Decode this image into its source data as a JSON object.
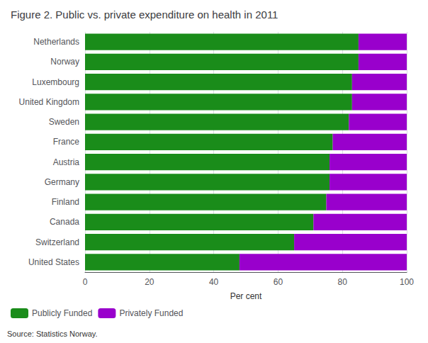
{
  "chart_data": {
    "type": "bar",
    "title": "Figure 2. Public vs. private expenditure on health in 2011",
    "orientation": "horizontal",
    "stacked": true,
    "categories": [
      "Netherlands",
      "Norway",
      "Luxembourg",
      "United Kingdom",
      "Sweden",
      "France",
      "Austria",
      "Germany",
      "Finland",
      "Canada",
      "Switzerland",
      "United States"
    ],
    "series": [
      {
        "name": "Publicly Funded",
        "color": "#1a8c1a",
        "values": [
          85,
          85,
          83,
          83,
          82,
          77,
          76,
          76,
          75,
          71,
          65,
          48
        ]
      },
      {
        "name": "Privately Funded",
        "color": "#9900cc",
        "values": [
          15,
          15,
          17,
          17,
          18,
          23,
          24,
          24,
          25,
          29,
          35,
          52
        ]
      }
    ],
    "xlabel": "Per cent",
    "xlim": [
      0,
      100
    ],
    "xticks": [
      0,
      20,
      40,
      60,
      80,
      100
    ],
    "grid": true,
    "legend": "lower left",
    "annotations": [
      "Source: Statistics Norway."
    ]
  }
}
